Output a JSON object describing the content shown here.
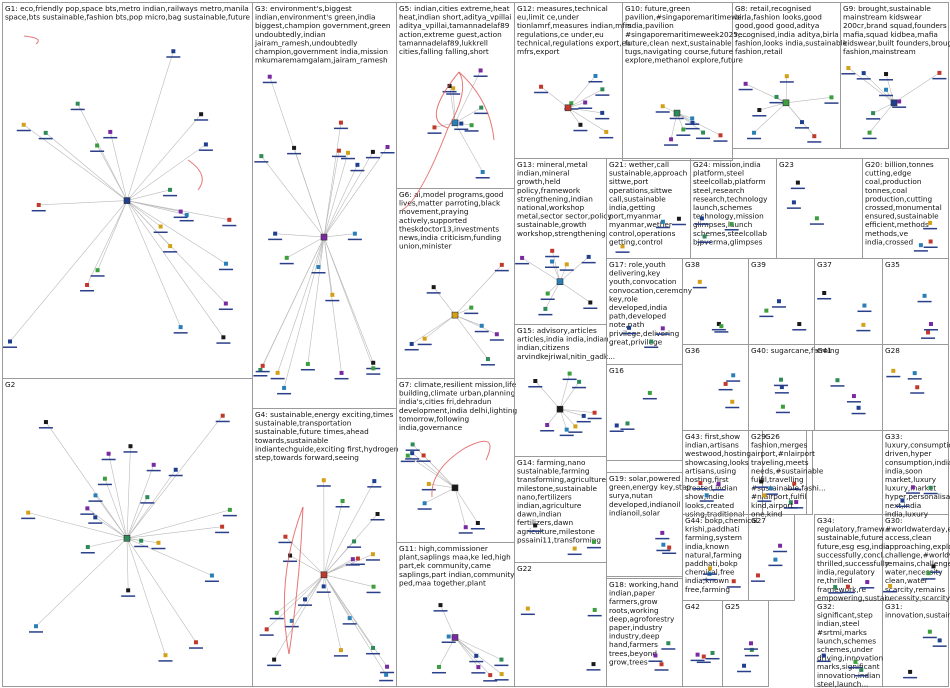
{
  "groups": [
    {
      "id": "G1",
      "text": [
        "G1: eco,friendly  pop,space  bts,metro  indian,railways  metro,manila",
        "space,bts  sustainable,fashion  bts,pop  micro,bag  sustainable,future"
      ]
    },
    {
      "id": "G2",
      "text": [
        "G2"
      ]
    },
    {
      "id": "G3",
      "text": [
        "G3: environment's,biggest",
        "indian,environment's  green,india",
        "biggest,champion  government,green",
        "undoubtedly,indian",
        "jairam_ramesh,undoubtedly",
        "champion,government  india,mission",
        "mkumaremamgalam,jairam_ramesh"
      ]
    },
    {
      "id": "G4",
      "text": [
        "G4: sustainable,energy  exciting,times",
        "sustainable,transportation",
        "sustainable,future  times,ahead",
        "towards,sustainable",
        "indiantechguide,exciting  first,hydrogen",
        "step,towards  forward,seeing"
      ]
    },
    {
      "id": "G5",
      "text": [
        "G5: indian,cities  extreme,heat",
        "heat,indian  short,aditya_vpillai",
        "aditya_vpillai,tamannadelaf89",
        "action,extreme  guest,action",
        "tamannadelaf89,lukkrell",
        "cities,falling  falling,short"
      ]
    },
    {
      "id": "G6",
      "text": [
        "G6: ai,model  programs,good",
        "lives,matter  parroting,black",
        "movement,praying",
        "actively,supported",
        "theskdoctor13,investments",
        "news,india  criticism,funding",
        "union,minister"
      ]
    },
    {
      "id": "G7",
      "text": [
        "G7: climate,resilient  mission,life",
        "building,climate  urban,planning",
        "india's,cities  fri,dehradun",
        "development,india  delhi,lighting",
        "tomorrow,following",
        "india,governance"
      ]
    },
    {
      "id": "G8",
      "text": [
        "G8: retail,recognised",
        "birla,fashion  looks,good",
        "good,good  good,aditya",
        "recognised,india  aditya,birla",
        "fashion,looks  india,sustainable",
        "fashion,retail"
      ]
    },
    {
      "id": "G9",
      "text": [
        "G9: brought,sustainable",
        "mainstream  kidswear",
        "200cr,brand  squad,founders",
        "mafia,squad  kidbea,mafia",
        "kidswear,built  founders,brought",
        "fashion,mainstream"
      ]
    },
    {
      "id": "G10",
      "text": [
        "G10: future,green",
        "pavilion,#singaporemaritimewe...",
        "india,pavilion",
        "#singaporemaritimeweek2025,...",
        "future,clean  next,sustainable",
        "tugs,navigating  course,future",
        "explore,methanol  explore,future"
      ]
    },
    {
      "id": "G11",
      "text": [
        "G11: high,commissioner",
        "plant,saplings  maa,ke  led,high",
        "part,ek  community,came",
        "saplings,part  indian,community",
        "ped,maa  together,plant"
      ]
    },
    {
      "id": "G12",
      "text": [
        "G12: measures,technical",
        "eu,limit  ce,under",
        "tionlamrf,measures  indian,mfrs",
        "regulations,ce  under,eu",
        "technical,regulations  export,eu",
        "mfrs,export"
      ]
    },
    {
      "id": "G13",
      "text": [
        "G13: mineral,metal",
        "indian,mineral",
        "growth,held",
        "policy,framework",
        "strengthening,indian",
        "national,workshop",
        "metal,sector  sector,policy",
        "sustainable,growth",
        "workshop,strengthening"
      ]
    },
    {
      "id": "G14",
      "text": [
        "G14: farming,nano",
        "sustainable,farming",
        "transforming,agriculture",
        "milestone,sustainable",
        "nano,fertilizers",
        "indian,agriculture",
        "dawn,indian",
        "fertilizers,dawn",
        "agriculture,milestone",
        "pssaini11,transforming"
      ]
    },
    {
      "id": "G15",
      "text": [
        "G15: advisory,articles",
        "articles,india  india,indian",
        "indian,citizens",
        "arvindkejriwal,nitin_gadk..."
      ]
    },
    {
      "id": "G16",
      "text": [
        "G16"
      ]
    },
    {
      "id": "G17",
      "text": [
        "G17: role,youth",
        "delivering,key",
        "youth,convocation",
        "convocation,ceremony",
        "key,role",
        "developed,india",
        "path,developed",
        "note,path",
        "privilege,delivering",
        "great,privilege"
      ]
    },
    {
      "id": "G18",
      "text": [
        "G18: working,hand",
        "indian,paper",
        "farmers,grow",
        "roots,working",
        "deep,agroforestry",
        "paper,industry",
        "industry,deep",
        "hand,farmers",
        "trees,beyond",
        "grow,trees"
      ]
    },
    {
      "id": "G19",
      "text": [
        "G19: solar,powered",
        "green,energy  key,step",
        "surya,nutan",
        "developed,indianoil",
        "indianoil,solar"
      ]
    },
    {
      "id": "G20",
      "text": [
        "G20: billion,tonnes",
        "cutting,edge",
        "coal,production",
        "tonnes,coal",
        "production,cutting",
        "crossed,monumental",
        "ensured,sustainable",
        "efficient,methods",
        "methods,ve",
        "india,crossed"
      ]
    },
    {
      "id": "G21",
      "text": [
        "G21: wether,call",
        "sustainable,approach",
        "sittwe,port",
        "operations,sittwe",
        "call,sustainable",
        "india,getting",
        "port,myanmar",
        "myanmar,wether",
        "control,operations",
        "getting,control"
      ]
    },
    {
      "id": "G22",
      "text": [
        "G22"
      ]
    },
    {
      "id": "G23",
      "text": [
        "G23"
      ]
    },
    {
      "id": "G24",
      "text": [
        "G24: mission,india",
        "platform,steel",
        "steelcollab,platform",
        "steel,research",
        "research,technology",
        "launch,schemes",
        "technology,mission",
        "glimpses,launch",
        "schemes,steelcollab",
        "bjpverma,glimpses"
      ]
    },
    {
      "id": "G25",
      "text": [
        "G25"
      ]
    },
    {
      "id": "G26",
      "text": [
        "G26"
      ]
    },
    {
      "id": "G27",
      "text": [
        "G27"
      ]
    },
    {
      "id": "G28",
      "text": [
        "G28"
      ]
    },
    {
      "id": "G29",
      "text": [
        "G29:",
        "fashion,merges",
        "airport,#nlairport",
        "traveling,meets",
        "needs,#sustainable",
        "fulfil,travelling",
        "#sustainable,fashi...",
        "#nlairport,fulfil",
        "kind,airport",
        "one,kind"
      ]
    },
    {
      "id": "G30",
      "text": [
        "G30:",
        "#worldwaterday,e...",
        "access,clean",
        "approaching,explo...",
        "challenge,#worldw...",
        "remains,challenge",
        "water,necessity",
        "clean,water",
        "scarcity,remains",
        "necessity,scarcity"
      ]
    },
    {
      "id": "G31",
      "text": [
        "G31:",
        "innovation,sustain..."
      ]
    },
    {
      "id": "G32",
      "text": [
        "G32:",
        "significant,step",
        "indian,steel",
        "#srtmi,marks",
        "launch,schemes",
        "schemes,under",
        "driving,innovation",
        "marks,significant",
        "innovation,indian",
        "steel,launch..."
      ]
    },
    {
      "id": "G33",
      "text": [
        "G33:",
        "luxury,consumption",
        "driven,hyper",
        "consumption,india",
        "india,soon",
        "market,luxury",
        "luxury,market",
        "hyper,personalisat...",
        "next,india",
        "india,luxury"
      ]
    },
    {
      "id": "G34",
      "text": [
        "G34:",
        "regulatory,framew...",
        "sustainable,future",
        "future,esg  esg,india",
        "successfully,concl...",
        "thrilled,successfully",
        "india,regulatory",
        "re,thrilled",
        "framework,re",
        "empowering,sustai..."
      ]
    },
    {
      "id": "G35",
      "text": [
        "G35"
      ]
    },
    {
      "id": "G36",
      "text": [
        "G36"
      ]
    },
    {
      "id": "G37",
      "text": [
        "G37"
      ]
    },
    {
      "id": "G38",
      "text": [
        "G38"
      ]
    },
    {
      "id": "G39",
      "text": [
        "G39"
      ]
    },
    {
      "id": "G40",
      "text": [
        "G40: sugarcane,farming"
      ]
    },
    {
      "id": "G41",
      "text": [
        "G41"
      ]
    },
    {
      "id": "G42",
      "text": [
        "G42"
      ]
    },
    {
      "id": "G43",
      "text": [
        "G43: first,show",
        "indian,artisans",
        "westwood,hosting",
        "showcasing,looks",
        "artisans,using",
        "hosting,first",
        "created,indian",
        "show,indie",
        "looks,created",
        "using,traditional"
      ]
    },
    {
      "id": "G44",
      "text": [
        "G44: bokp,chemical",
        "krishi,paddhati",
        "farming,system",
        "india,known",
        "natural,farming",
        "paddhati,bokp",
        "chemical,free",
        "india,known",
        "free,farming"
      ]
    }
  ],
  "colors": {
    "border": "#9a9a9a",
    "edge": "#b9b9b9",
    "highlight_edge": "#e05555",
    "node_blue": "#1f3f8f",
    "node_green": "#2e8b57"
  }
}
